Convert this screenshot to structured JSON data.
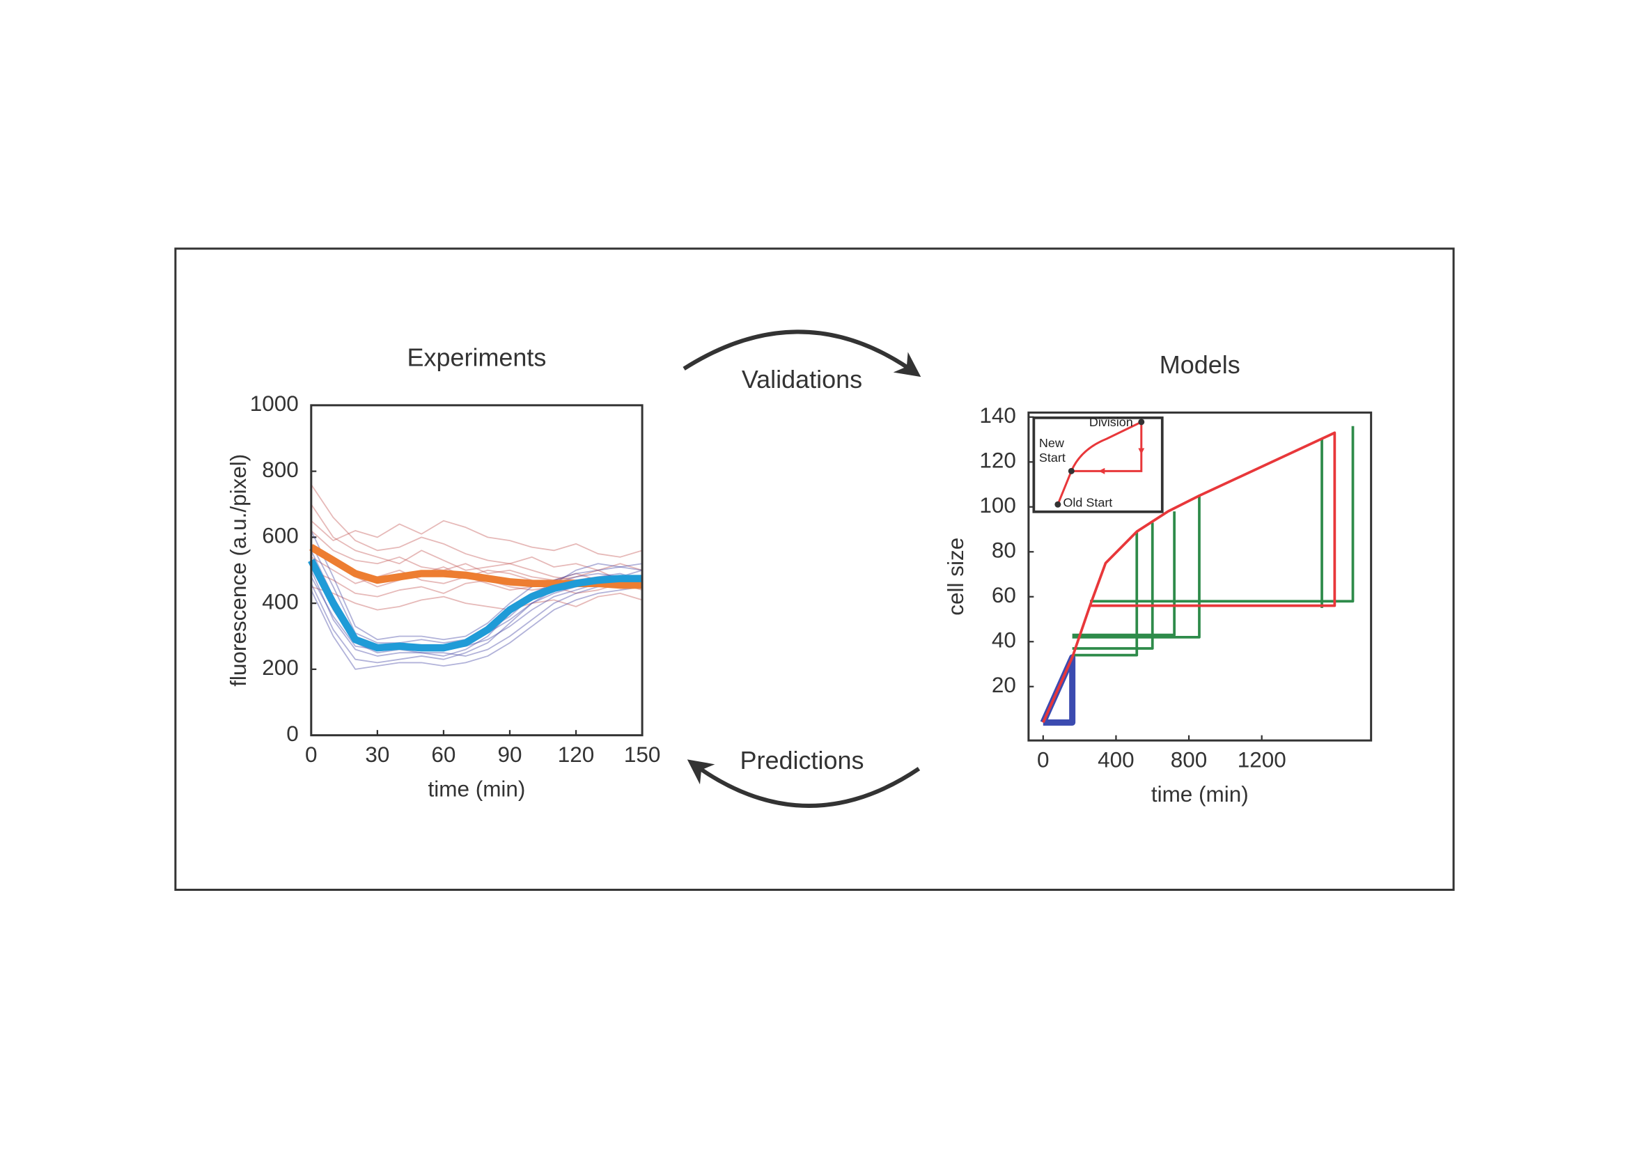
{
  "chart_data": [
    {
      "type": "line",
      "title": "Experiments",
      "xlabel": "time  (min)",
      "ylabel": "fluorescence (a.u./pixel)",
      "xlim": [
        0,
        150
      ],
      "ylim": [
        0,
        1000
      ],
      "xticks": [
        0,
        30,
        60,
        90,
        120,
        150
      ],
      "yticks": [
        0,
        200,
        400,
        600,
        800,
        1000
      ],
      "x": [
        0,
        10,
        20,
        30,
        40,
        50,
        60,
        70,
        80,
        90,
        100,
        110,
        120,
        130,
        140,
        150
      ],
      "series": [
        {
          "color": "#c0504d",
          "width": 1.2,
          "values": [
            620,
            560,
            530,
            520,
            540,
            510,
            500,
            520,
            490,
            500,
            480,
            470,
            490,
            470,
            480,
            460
          ]
        },
        {
          "color": "#c0504d",
          "width": 1.2,
          "values": [
            700,
            600,
            560,
            540,
            520,
            560,
            530,
            500,
            510,
            520,
            500,
            480,
            470,
            460,
            450,
            470
          ]
        },
        {
          "color": "#c0504d",
          "width": 1.2,
          "values": [
            500,
            470,
            430,
            420,
            440,
            450,
            430,
            460,
            470,
            450,
            440,
            450,
            430,
            440,
            460,
            440
          ]
        },
        {
          "color": "#c0504d",
          "width": 1.2,
          "values": [
            580,
            520,
            480,
            450,
            470,
            490,
            510,
            480,
            460,
            440,
            450,
            470,
            480,
            500,
            470,
            480
          ]
        },
        {
          "color": "#c0504d",
          "width": 1.2,
          "values": [
            650,
            590,
            620,
            600,
            640,
            610,
            650,
            630,
            600,
            590,
            570,
            560,
            580,
            550,
            540,
            560
          ]
        },
        {
          "color": "#c0504d",
          "width": 1.2,
          "values": [
            450,
            430,
            400,
            380,
            390,
            410,
            420,
            400,
            390,
            380,
            400,
            410,
            390,
            420,
            430,
            410
          ]
        },
        {
          "color": "#c0504d",
          "width": 1.2,
          "values": [
            760,
            660,
            590,
            560,
            570,
            600,
            580,
            550,
            530,
            520,
            540,
            510,
            520,
            500,
            520,
            500
          ]
        },
        {
          "color": "#c0504d",
          "width": 1.2,
          "values": [
            540,
            500,
            460,
            480,
            500,
            470,
            460,
            480,
            500,
            490,
            470,
            460,
            450,
            470,
            480,
            470
          ]
        },
        {
          "color": "#3b3fa0",
          "width": 1.2,
          "values": [
            500,
            350,
            260,
            240,
            250,
            250,
            240,
            260,
            300,
            370,
            430,
            460,
            480,
            490,
            480,
            500
          ]
        },
        {
          "color": "#3b3fa0",
          "width": 1.2,
          "values": [
            560,
            420,
            300,
            270,
            280,
            270,
            260,
            270,
            290,
            330,
            380,
            420,
            440,
            460,
            470,
            480
          ]
        },
        {
          "color": "#3b3fa0",
          "width": 1.2,
          "values": [
            460,
            320,
            230,
            220,
            230,
            240,
            230,
            250,
            280,
            340,
            400,
            440,
            470,
            480,
            490,
            470
          ]
        },
        {
          "color": "#3b3fa0",
          "width": 1.2,
          "values": [
            620,
            480,
            330,
            290,
            300,
            300,
            290,
            300,
            340,
            400,
            450,
            470,
            490,
            500,
            510,
            500
          ]
        },
        {
          "color": "#3b3fa0",
          "width": 1.2,
          "values": [
            520,
            380,
            280,
            250,
            260,
            250,
            250,
            240,
            260,
            300,
            350,
            400,
            430,
            450,
            460,
            470
          ]
        },
        {
          "color": "#3b3fa0",
          "width": 1.2,
          "values": [
            440,
            300,
            200,
            210,
            220,
            220,
            210,
            220,
            240,
            280,
            330,
            380,
            410,
            430,
            440,
            450
          ]
        },
        {
          "color": "#3b3fa0",
          "width": 1.2,
          "values": [
            580,
            450,
            310,
            280,
            280,
            290,
            280,
            290,
            320,
            360,
            420,
            460,
            500,
            520,
            510,
            520
          ]
        },
        {
          "color": "#3b3fa0",
          "width": 1.2,
          "values": [
            480,
            360,
            270,
            260,
            270,
            260,
            270,
            280,
            310,
            350,
            400,
            430,
            450,
            460,
            460,
            470
          ]
        },
        {
          "color": "#ed7d31",
          "width": 7,
          "values": [
            570,
            530,
            490,
            470,
            480,
            490,
            490,
            485,
            475,
            465,
            460,
            460,
            460,
            460,
            455,
            455
          ]
        },
        {
          "color": "#1f9bd7",
          "width": 7,
          "values": [
            530,
            400,
            290,
            265,
            270,
            265,
            265,
            280,
            320,
            380,
            420,
            445,
            460,
            470,
            475,
            475
          ]
        }
      ]
    },
    {
      "type": "line",
      "title": "Models",
      "xlabel": "time (min)",
      "ylabel": "cell size",
      "xlim": [
        -80,
        1800
      ],
      "ylim": [
        -4,
        142
      ],
      "xticks": [
        0,
        400,
        800,
        1200
      ],
      "yticks": [
        20,
        40,
        60,
        80,
        100,
        120,
        140
      ],
      "inset_labels": [
        "Division",
        "New Start",
        "Old Start"
      ],
      "series": [
        {
          "color": "#3b4bb0",
          "width": 6,
          "x": [
            0,
            160,
            160,
            0
          ],
          "values": [
            4,
            33,
            4,
            4
          ]
        },
        {
          "color": "#2e8b4a",
          "width": 2.5,
          "x": [
            1700,
            1700,
            257,
            257,
            1530,
            1530,
            1530,
            857,
            857,
            160,
            160,
            720,
            720,
            160,
            160,
            600,
            600,
            160,
            160,
            514,
            514,
            160
          ],
          "values": [
            136,
            58,
            58,
            null,
            130,
            55,
            null,
            105,
            42,
            42,
            null,
            98,
            43,
            43,
            null,
            93,
            37,
            37,
            null,
            89,
            34,
            34
          ]
        },
        {
          "color": "#e8373a",
          "width": 2.5,
          "x": [
            0,
            160,
            257,
            343,
            514,
            686,
            857,
            1600,
            1600,
            257
          ],
          "values": [
            4,
            33,
            56,
            75,
            89,
            98,
            105,
            133,
            56,
            56
          ]
        }
      ]
    }
  ],
  "cycle": {
    "top": "Validations",
    "bottom": "Predictions"
  }
}
